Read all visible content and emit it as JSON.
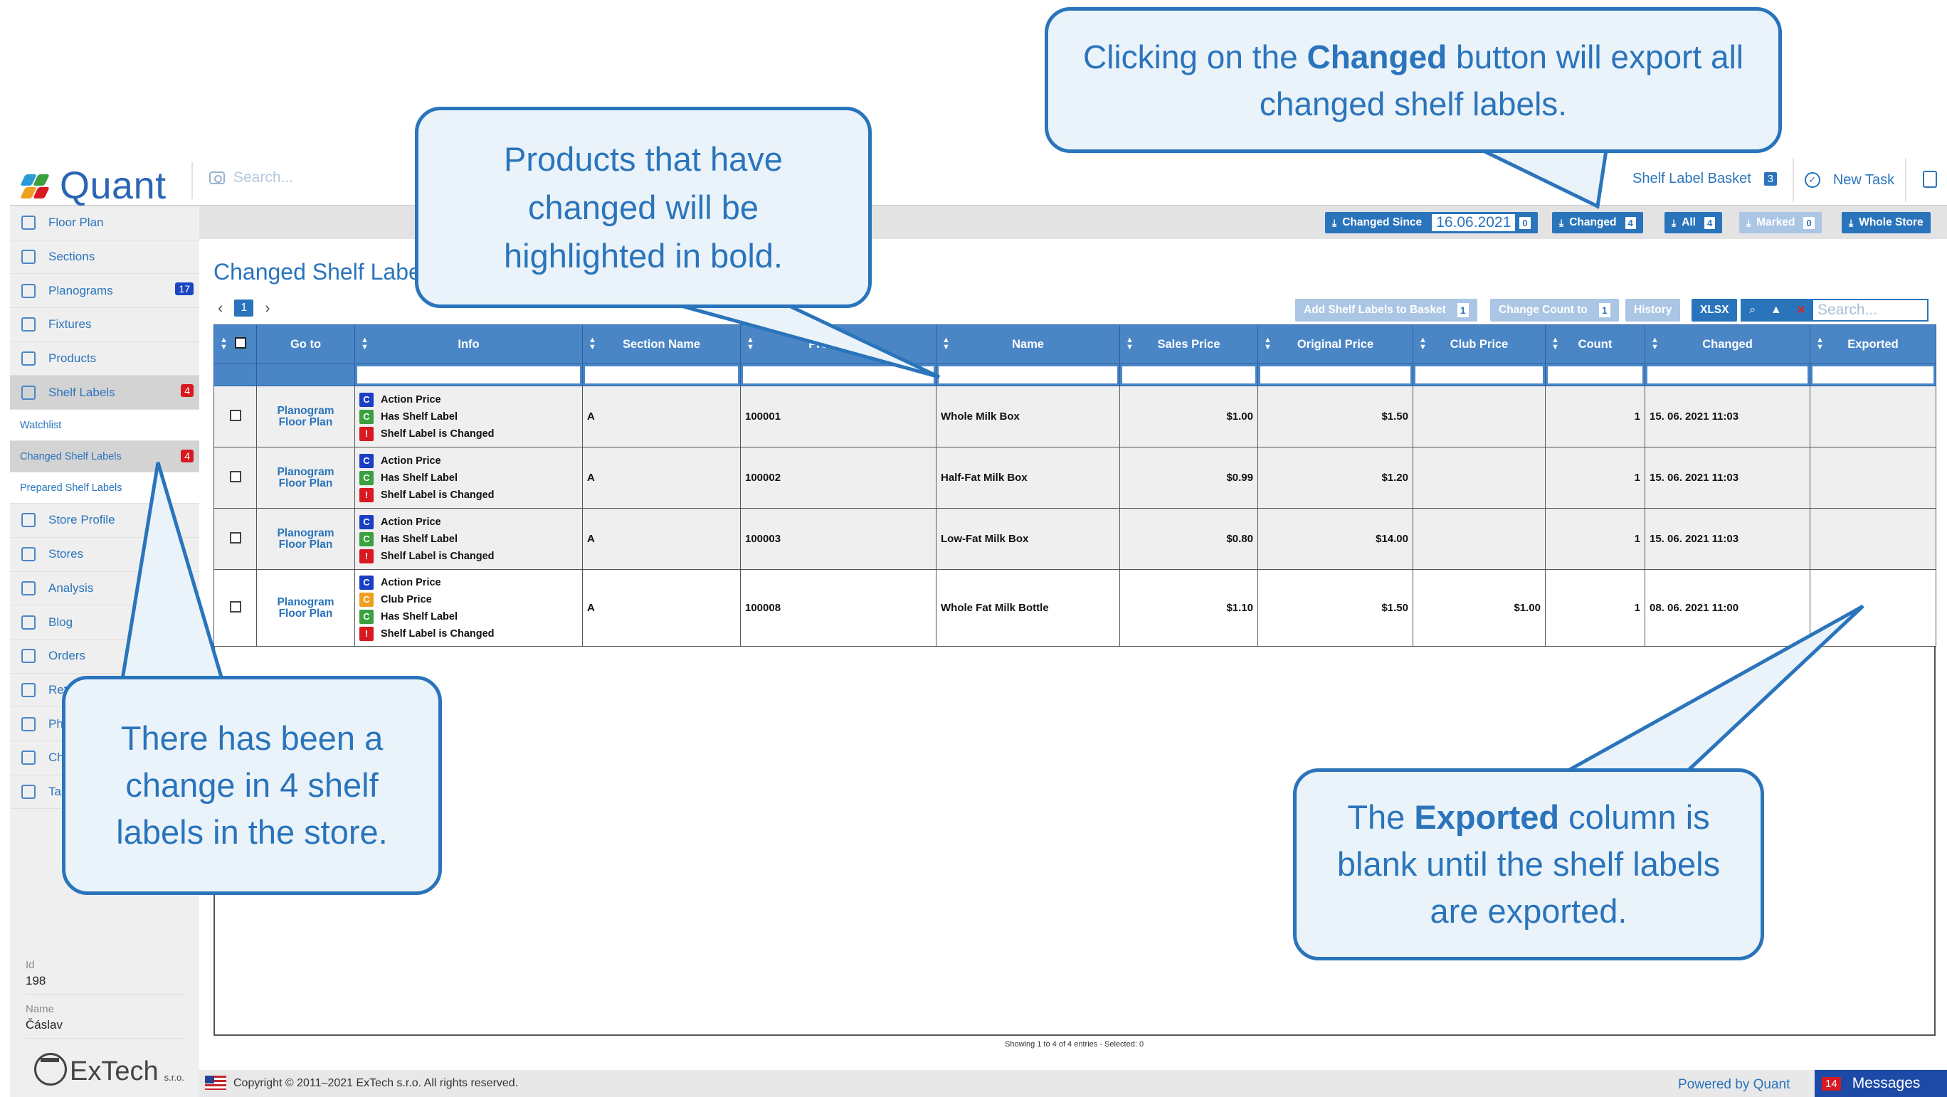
{
  "app": {
    "name": "Quant",
    "search_placeholder": "Search..."
  },
  "topbar": {
    "basket_label": "Shelf Label Basket",
    "basket_count": "3",
    "new_task_label": "New Task"
  },
  "sidebar": {
    "items": [
      {
        "label": "Floor Plan",
        "icon": "floor-plan-icon"
      },
      {
        "label": "Sections",
        "icon": "sections-icon"
      },
      {
        "label": "Planograms",
        "icon": "planograms-icon",
        "badge": "17"
      },
      {
        "label": "Fixtures",
        "icon": "fixtures-icon"
      },
      {
        "label": "Products",
        "icon": "products-icon"
      },
      {
        "label": "Shelf Labels",
        "icon": "tag-icon",
        "badge": "4"
      }
    ],
    "subitems": [
      {
        "label": "Watchlist"
      },
      {
        "label": "Changed Shelf Labels",
        "badge": "4"
      },
      {
        "label": "Prepared Shelf Labels"
      }
    ],
    "items2": [
      {
        "label": "Store Profile"
      },
      {
        "label": "Stores"
      },
      {
        "label": "Analysis"
      },
      {
        "label": "Blog"
      },
      {
        "label": "Orders"
      },
      {
        "label": "Retu"
      },
      {
        "label": "Pho"
      },
      {
        "label": "Cha"
      },
      {
        "label": "Tas"
      }
    ],
    "store_fields": {
      "id_label": "Id",
      "id_value": "198",
      "name_label": "Name",
      "name_value": "Čáslav"
    },
    "brand": {
      "name": "ExTech",
      "suffix": "s.r.o."
    }
  },
  "actions": {
    "changed_since_label": "Changed Since",
    "changed_since_date": "16.06.2021",
    "changed_since_count": "0",
    "changed_label": "Changed",
    "changed_count": "4",
    "all_label": "All",
    "all_count": "4",
    "marked_label": "Marked",
    "marked_count": "0",
    "whole_store_label": "Whole Store"
  },
  "content": {
    "title": "Changed Shelf Labels",
    "page": "1",
    "add_basket_label": "Add Shelf Labels to Basket",
    "add_basket_count": "1",
    "change_count_label": "Change Count to",
    "change_count_value": "1",
    "history_label": "History",
    "xlsx_label": "XLSX",
    "search_placeholder": "Search..."
  },
  "table": {
    "columns": [
      "Go to",
      "Info",
      "Section Name",
      "Product ID",
      "Name",
      "Sales Price",
      "Original Price",
      "Club Price",
      "Count",
      "Changed",
      "Exported"
    ],
    "goto_line1": "Planogram",
    "goto_line2": "Floor Plan",
    "rows": [
      {
        "info": [
          "Action Price",
          "Has Shelf Label",
          "Shelf Label is Changed"
        ],
        "section": "A",
        "product_id": "100001",
        "name": "Whole Milk Box",
        "sales_price": "$1.00",
        "original_price": "$1.50",
        "club_price": "",
        "count": "1",
        "changed": "15. 06. 2021 11:03",
        "exported": ""
      },
      {
        "info": [
          "Action Price",
          "Has Shelf Label",
          "Shelf Label is Changed"
        ],
        "section": "A",
        "product_id": "100002",
        "name": "Half-Fat Milk Box",
        "sales_price": "$0.99",
        "original_price": "$1.20",
        "club_price": "",
        "count": "1",
        "changed": "15. 06. 2021 11:03",
        "exported": ""
      },
      {
        "info": [
          "Action Price",
          "Has Shelf Label",
          "Shelf Label is Changed"
        ],
        "section": "A",
        "product_id": "100003",
        "name": "Low-Fat Milk Box",
        "sales_price": "$0.80",
        "original_price": "$14.00",
        "club_price": "",
        "count": "1",
        "changed": "15. 06. 2021 11:03",
        "exported": ""
      },
      {
        "info": [
          "Action Price",
          "Club Price",
          "Has Shelf Label",
          "Shelf Label is Changed"
        ],
        "section": "A",
        "product_id": "100008",
        "name": "Whole Fat Milk Bottle",
        "sales_price": "$1.10",
        "original_price": "$1.50",
        "club_price": "$1.00",
        "count": "1",
        "changed": "08. 06. 2021 11:00",
        "exported": ""
      }
    ],
    "info_badges": {
      "Action Price": "C",
      "Club Price": "C",
      "Has Shelf Label": "C",
      "Shelf Label is Changed": "!"
    },
    "badge_colors": {
      "Action Price": "#1a3fc4",
      "Club Price": "#f0a020",
      "Has Shelf Label": "#3aa040",
      "Shelf Label is Changed": "#d71920"
    },
    "showing": "Showing 1 to 4 of 4 entries - Selected: 0"
  },
  "footer": {
    "copyright": "Copyright © 2011–2021 ExTech s.r.o. All rights reserved.",
    "powered": "Powered by Quant",
    "messages_label": "Messages",
    "messages_count": "14"
  },
  "callouts": {
    "changed": {
      "pre": "Clicking on the ",
      "bold": "Changed",
      "post": " button will export all changed shelf labels."
    },
    "bold": {
      "text": "Products that have changed will be highlighted in bold."
    },
    "count": {
      "text": "There has been a change in 4 shelf labels in the store."
    },
    "exported": {
      "pre": "The ",
      "bold": "Exported",
      "post": " column is blank until the shelf labels are exported."
    }
  },
  "colors": {
    "accent": "#2a74bc",
    "header": "#4a86c6",
    "badge_red": "#d71920",
    "callout_bg": "#eaf3f9"
  }
}
